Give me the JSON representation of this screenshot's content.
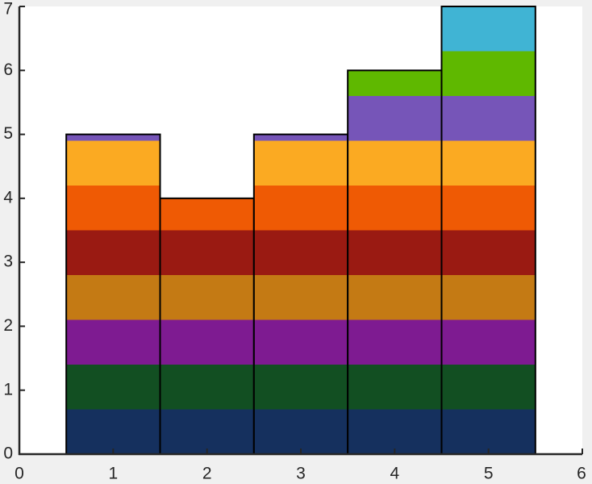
{
  "chart_data": {
    "type": "bar",
    "stacked": true,
    "x": [
      1,
      2,
      3,
      4,
      5
    ],
    "series": [
      {
        "color": "#15305e",
        "values": [
          0.7,
          0.7,
          0.7,
          0.7,
          0.7
        ]
      },
      {
        "color": "#124f22",
        "values": [
          0.7,
          0.7,
          0.7,
          0.7,
          0.7
        ]
      },
      {
        "color": "#7e1b91",
        "values": [
          0.7,
          0.7,
          0.7,
          0.7,
          0.7
        ]
      },
      {
        "color": "#c47a14",
        "values": [
          0.7,
          0.7,
          0.7,
          0.7,
          0.7
        ]
      },
      {
        "color": "#9a1a12",
        "values": [
          0.7,
          0.7,
          0.7,
          0.7,
          0.7
        ]
      },
      {
        "color": "#ef5a04",
        "values": [
          0.7,
          0.5,
          0.7,
          0.7,
          0.7
        ]
      },
      {
        "color": "#fbaa22",
        "values": [
          0.7,
          0,
          0.7,
          0.7,
          0.7
        ]
      },
      {
        "color": "#7655b8",
        "values": [
          0.1,
          0,
          0.1,
          0.7,
          0.7
        ]
      },
      {
        "color": "#5fb800",
        "values": [
          0,
          0,
          0,
          0.4,
          0.7
        ]
      },
      {
        "color": "#40b4d4",
        "values": [
          0,
          0,
          0,
          0,
          0.7
        ]
      }
    ],
    "xlim": [
      0,
      6
    ],
    "xticks": [
      0,
      1,
      2,
      3,
      4,
      5,
      6
    ],
    "ylim": [
      0,
      7
    ],
    "yticks": [
      0,
      1,
      2,
      3,
      4,
      5,
      6,
      7
    ]
  }
}
